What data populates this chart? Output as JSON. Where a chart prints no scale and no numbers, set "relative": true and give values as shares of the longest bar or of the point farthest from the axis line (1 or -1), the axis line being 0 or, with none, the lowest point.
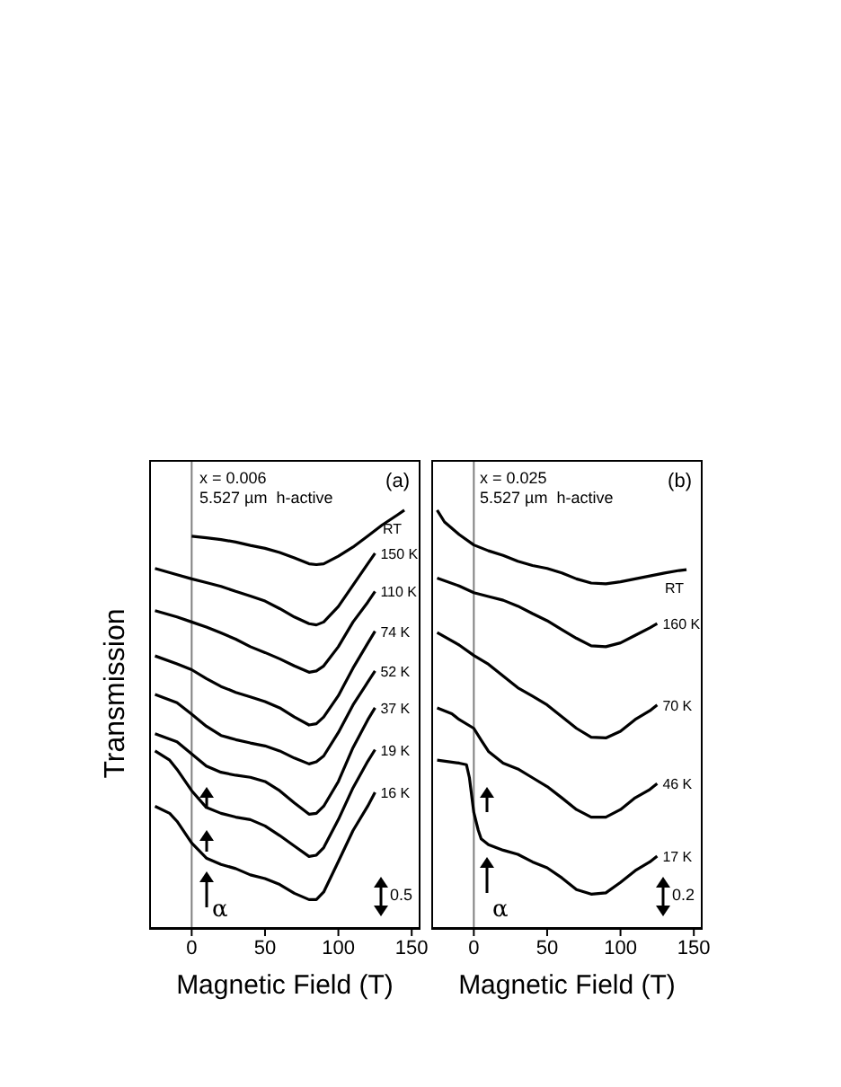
{
  "chart_data": [
    {
      "type": "line",
      "relative": true,
      "xlabel": "Magnetic Field (T)",
      "ylabel": "Transmission",
      "xlim": [
        -29,
        156
      ],
      "xticks": [
        0,
        50,
        100,
        150
      ],
      "tick_labels": "x",
      "marker": "none",
      "ref_lines": [
        {
          "axis": "x",
          "value": 0,
          "color": "#808080"
        }
      ],
      "annotations": [
        "(a)",
        "x = 0.006",
        "5.527 µm  h-active",
        "α",
        "0.5"
      ],
      "series": [
        {
          "name": "RT",
          "color": "#000000",
          "x": [
            0,
            10,
            20,
            30,
            40,
            50,
            60,
            70,
            80,
            85,
            90,
            100,
            110,
            120,
            130,
            140,
            145
          ],
          "values": [
            0.938,
            0.934,
            0.93,
            0.924,
            0.916,
            0.909,
            0.899,
            0.886,
            0.872,
            0.87,
            0.872,
            0.89,
            0.912,
            0.938,
            0.965,
            0.988,
            1.0
          ]
        },
        {
          "name": "150 K",
          "color": "#000000",
          "x": [
            -25,
            -10,
            0,
            10,
            20,
            30,
            40,
            50,
            60,
            70,
            80,
            85,
            90,
            100,
            110,
            120,
            125
          ],
          "values": [
            0.861,
            0.846,
            0.836,
            0.827,
            0.818,
            0.806,
            0.795,
            0.783,
            0.765,
            0.745,
            0.729,
            0.726,
            0.733,
            0.77,
            0.821,
            0.872,
            0.897
          ]
        },
        {
          "name": "110 K",
          "color": "#000000",
          "x": [
            -25,
            -10,
            0,
            10,
            20,
            30,
            40,
            50,
            60,
            70,
            80,
            85,
            90,
            100,
            110,
            120,
            125
          ],
          "values": [
            0.76,
            0.745,
            0.733,
            0.721,
            0.707,
            0.692,
            0.674,
            0.66,
            0.645,
            0.628,
            0.613,
            0.616,
            0.628,
            0.674,
            0.733,
            0.78,
            0.806
          ]
        },
        {
          "name": "74 K",
          "color": "#000000",
          "x": [
            -25,
            -10,
            0,
            10,
            20,
            30,
            40,
            50,
            60,
            70,
            80,
            85,
            90,
            100,
            110,
            120,
            125
          ],
          "values": [
            0.652,
            0.633,
            0.619,
            0.598,
            0.579,
            0.565,
            0.554,
            0.543,
            0.528,
            0.506,
            0.487,
            0.49,
            0.506,
            0.557,
            0.623,
            0.682,
            0.711
          ]
        },
        {
          "name": "52 K",
          "color": "#000000",
          "x": [
            -25,
            -10,
            0,
            10,
            20,
            30,
            40,
            50,
            60,
            70,
            80,
            85,
            90,
            100,
            110,
            120,
            125
          ],
          "values": [
            0.56,
            0.54,
            0.513,
            0.484,
            0.462,
            0.452,
            0.444,
            0.437,
            0.425,
            0.408,
            0.394,
            0.399,
            0.413,
            0.469,
            0.535,
            0.589,
            0.616
          ]
        },
        {
          "name": "37 K",
          "color": "#000000",
          "x": [
            -25,
            -10,
            0,
            10,
            20,
            30,
            40,
            50,
            60,
            70,
            80,
            85,
            90,
            100,
            110,
            120,
            125
          ],
          "values": [
            0.466,
            0.447,
            0.418,
            0.389,
            0.374,
            0.367,
            0.362,
            0.352,
            0.33,
            0.301,
            0.274,
            0.276,
            0.293,
            0.352,
            0.433,
            0.499,
            0.528
          ]
        },
        {
          "name": "19 K",
          "color": "#000000",
          "x": [
            -25,
            -15,
            -10,
            0,
            10,
            20,
            30,
            40,
            50,
            60,
            70,
            80,
            85,
            90,
            100,
            110,
            120,
            125
          ],
          "values": [
            0.425,
            0.403,
            0.381,
            0.33,
            0.29,
            0.276,
            0.267,
            0.261,
            0.246,
            0.223,
            0.198,
            0.173,
            0.176,
            0.194,
            0.261,
            0.337,
            0.4,
            0.428
          ]
        },
        {
          "name": "16 K",
          "color": "#000000",
          "x": [
            -25,
            -15,
            -10,
            0,
            10,
            20,
            30,
            40,
            50,
            60,
            70,
            80,
            85,
            90,
            100,
            110,
            120,
            125
          ],
          "values": [
            0.293,
            0.276,
            0.257,
            0.205,
            0.169,
            0.154,
            0.144,
            0.129,
            0.12,
            0.106,
            0.085,
            0.07,
            0.07,
            0.088,
            0.161,
            0.235,
            0.293,
            0.326
          ]
        }
      ]
    },
    {
      "type": "line",
      "relative": true,
      "xlabel": "Magnetic Field (T)",
      "xlim": [
        -29,
        156
      ],
      "xticks": [
        0,
        50,
        100,
        150
      ],
      "tick_labels": "x",
      "marker": "none",
      "ref_lines": [
        {
          "axis": "x",
          "value": 0,
          "color": "#808080"
        }
      ],
      "annotations": [
        "(b)",
        "x = 0.025",
        "5.527 µm  h-active",
        "α",
        "0.2"
      ],
      "series": [
        {
          "name": "RT",
          "color": "#000000",
          "x": [
            -25,
            -20,
            -10,
            0,
            10,
            20,
            30,
            40,
            50,
            60,
            70,
            80,
            90,
            100,
            110,
            120,
            130,
            140,
            145
          ],
          "values": [
            1.0,
            0.972,
            0.942,
            0.917,
            0.903,
            0.892,
            0.878,
            0.868,
            0.861,
            0.85,
            0.836,
            0.826,
            0.824,
            0.829,
            0.836,
            0.843,
            0.85,
            0.856,
            0.858
          ]
        },
        {
          "name": "160 K",
          "color": "#000000",
          "x": [
            -25,
            -10,
            0,
            10,
            20,
            30,
            40,
            50,
            60,
            70,
            80,
            90,
            100,
            110,
            120,
            125
          ],
          "values": [
            0.838,
            0.819,
            0.803,
            0.794,
            0.785,
            0.771,
            0.753,
            0.736,
            0.715,
            0.694,
            0.676,
            0.674,
            0.683,
            0.701,
            0.719,
            0.729
          ]
        },
        {
          "name": "70 K",
          "color": "#000000",
          "x": [
            -25,
            -10,
            0,
            10,
            20,
            30,
            40,
            50,
            60,
            70,
            80,
            90,
            100,
            110,
            120,
            125
          ],
          "values": [
            0.708,
            0.678,
            0.653,
            0.632,
            0.604,
            0.576,
            0.556,
            0.535,
            0.507,
            0.479,
            0.458,
            0.456,
            0.472,
            0.5,
            0.521,
            0.535
          ]
        },
        {
          "name": "46 K",
          "color": "#000000",
          "x": [
            -25,
            -15,
            -10,
            0,
            5,
            10,
            20,
            30,
            40,
            50,
            60,
            70,
            80,
            90,
            100,
            110,
            120,
            125
          ],
          "values": [
            0.528,
            0.514,
            0.5,
            0.479,
            0.451,
            0.424,
            0.396,
            0.382,
            0.361,
            0.34,
            0.313,
            0.285,
            0.267,
            0.267,
            0.285,
            0.313,
            0.333,
            0.347
          ]
        },
        {
          "name": "17 K",
          "color": "#000000",
          "x": [
            -25,
            -10,
            -5,
            -3,
            0,
            3,
            5,
            10,
            20,
            30,
            40,
            50,
            60,
            70,
            80,
            90,
            100,
            110,
            120,
            125
          ],
          "values": [
            0.403,
            0.396,
            0.392,
            0.361,
            0.278,
            0.236,
            0.215,
            0.201,
            0.188,
            0.178,
            0.16,
            0.146,
            0.122,
            0.094,
            0.083,
            0.086,
            0.111,
            0.139,
            0.16,
            0.174
          ]
        }
      ]
    }
  ]
}
